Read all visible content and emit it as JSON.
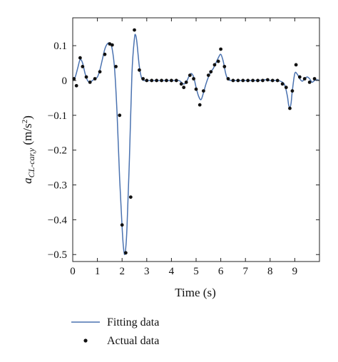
{
  "chart_data": {
    "type": "line",
    "title": "",
    "xlabel": "Time (s)",
    "ylabel_main": "a",
    "ylabel_sub": "CL-car,y",
    "ylabel_unit_prefix": " (m/s",
    "ylabel_unit_exp": "2",
    "ylabel_unit_suffix": ")",
    "xlim": [
      0,
      10
    ],
    "ylim": [
      -0.52,
      0.18
    ],
    "xticks": [
      0,
      1,
      2,
      3,
      4,
      5,
      6,
      7,
      8,
      9
    ],
    "xtick_labels": [
      "0",
      "1",
      "2",
      "3",
      "4",
      "5",
      "6",
      "7",
      "8",
      "9"
    ],
    "yticks": [
      0.1,
      0,
      -0.1,
      -0.2,
      -0.3,
      -0.4,
      -0.5
    ],
    "ytick_labels": [
      "0.1",
      "0",
      "−0.1",
      "−0.2",
      "−0.3",
      "−0.4",
      "−0.5"
    ],
    "grid": false,
    "legend_position": "bottom-left, below plot",
    "series": [
      {
        "name": "Fitting data",
        "style": "line",
        "color": "#4a72b0",
        "x": [
          0,
          0.1,
          0.2,
          0.3,
          0.4,
          0.5,
          0.6,
          0.7,
          0.8,
          0.9,
          1.0,
          1.1,
          1.2,
          1.3,
          1.4,
          1.5,
          1.6,
          1.7,
          1.8,
          1.9,
          2.0,
          2.05,
          2.1,
          2.15,
          2.2,
          2.3,
          2.4,
          2.5,
          2.55,
          2.6,
          2.7,
          2.8,
          2.9,
          3.0,
          3.2,
          3.5,
          4.0,
          4.3,
          4.4,
          4.5,
          4.6,
          4.7,
          4.8,
          4.9,
          5.0,
          5.1,
          5.2,
          5.3,
          5.4,
          5.5,
          5.6,
          5.7,
          5.8,
          5.9,
          6.0,
          6.1,
          6.2,
          6.3,
          6.5,
          7.0,
          7.5,
          7.8,
          8.0,
          8.3,
          8.5,
          8.6,
          8.7,
          8.75,
          8.8,
          8.85,
          8.9,
          9.0,
          9.1,
          9.2,
          9.3,
          9.4,
          9.5,
          9.6,
          9.7,
          9.8,
          9.9,
          10.0
        ],
        "y": [
          0,
          0.01,
          0.035,
          0.06,
          0.05,
          0.02,
          0,
          -0.005,
          0,
          0.005,
          0.01,
          0.03,
          0.06,
          0.09,
          0.105,
          0.107,
          0.09,
          0.03,
          -0.1,
          -0.28,
          -0.42,
          -0.475,
          -0.5,
          -0.48,
          -0.42,
          -0.22,
          0.02,
          0.12,
          0.13,
          0.11,
          0.04,
          0.005,
          0,
          0,
          0,
          0,
          0,
          0,
          -0.005,
          -0.01,
          -0.005,
          0.01,
          0.02,
          0.01,
          -0.02,
          -0.045,
          -0.055,
          -0.035,
          -0.01,
          0.01,
          0.025,
          0.035,
          0.05,
          0.065,
          0.075,
          0.055,
          0.02,
          0.003,
          0,
          0,
          0,
          0.002,
          0,
          0,
          -0.005,
          -0.015,
          -0.045,
          -0.07,
          -0.078,
          -0.065,
          -0.03,
          0.02,
          0.018,
          0.005,
          -0.002,
          0.005,
          0.01,
          0.005,
          -0.005,
          0,
          0.002,
          0
        ]
      },
      {
        "name": "Actual data",
        "style": "points",
        "color": "#111111",
        "x": [
          0.05,
          0.15,
          0.3,
          0.4,
          0.55,
          0.7,
          0.9,
          1.1,
          1.3,
          1.5,
          1.6,
          1.75,
          1.9,
          2.0,
          2.15,
          2.35,
          2.5,
          2.7,
          2.85,
          3.0,
          3.2,
          3.4,
          3.6,
          3.8,
          4.0,
          4.2,
          4.4,
          4.5,
          4.6,
          4.75,
          4.9,
          5.0,
          5.15,
          5.3,
          5.5,
          5.6,
          5.75,
          5.9,
          6.0,
          6.15,
          6.3,
          6.5,
          6.7,
          6.9,
          7.1,
          7.3,
          7.5,
          7.7,
          7.9,
          8.1,
          8.3,
          8.5,
          8.65,
          8.8,
          8.9,
          9.05,
          9.2,
          9.4,
          9.6,
          9.8
        ],
        "y": [
          0.005,
          -0.015,
          0.065,
          0.04,
          0.01,
          -0.005,
          0.005,
          0.025,
          0.075,
          0.105,
          0.102,
          0.04,
          -0.1,
          -0.415,
          -0.495,
          -0.335,
          0.145,
          0.03,
          0.005,
          0,
          0,
          0,
          0,
          0,
          0,
          0,
          -0.01,
          -0.02,
          -0.005,
          0.015,
          0.005,
          -0.025,
          -0.07,
          -0.03,
          0.015,
          0.025,
          0.045,
          0.055,
          0.09,
          0.04,
          0.005,
          0,
          0,
          0,
          0,
          0,
          0,
          0,
          0.002,
          0,
          0,
          -0.01,
          -0.02,
          -0.08,
          -0.03,
          0.045,
          0.01,
          0.005,
          -0.005,
          0.005
        ]
      }
    ]
  }
}
